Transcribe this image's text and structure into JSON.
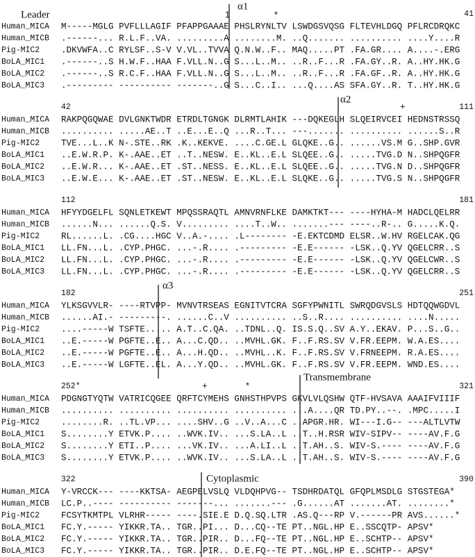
{
  "blocks": [
    {
      "end": "41",
      "annotations": [
        "Leader",
        "α1",
        "1",
        "*"
      ],
      "rows": [
        {
          "name": "Human_MICA",
          "seq": "M-----MGLG PVFLLLAGIF PFAPPGAAAE PHSLRYNLTV LSWDGSVQSG FLTEVHLDGQ PFLRCDRQKC"
        },
        {
          "name": "Human_MICB",
          "seq": ".------... R.L.F..VA. .........A ........M. ..Q....... .......... ....Y....R"
        },
        {
          "name": "Pig-MIC2",
          "seq": ".DKVWFA..C RYLSF..S-V V.VL..TVVA Q.N.W..F.. MAQ.....PT .FA.GR.... A....-.ERG"
        },
        {
          "name": "BoLA_MIC1",
          "seq": ".------..S H.W.F..HAA F.VLL.N..G S...L..M.. ..R..F...R .FA.GY..R. A..HY.HK.G"
        },
        {
          "name": "BoLA_MIC2",
          "seq": ".------..S R.C.F..HAA F.VLL.N..G S...L..M.. ..R..F...R .FA.GF..R. A..HY.HK.G"
        },
        {
          "name": "BoLA_MIC3",
          "seq": ".--------- ---------- -------..G S...C..I.. ...Q....AS SFA.GY..R. T..HY.HK.G"
        }
      ]
    },
    {
      "start": "42",
      "end": "111",
      "annotations": [
        "α2",
        "+"
      ],
      "rows": [
        {
          "name": "Human_MICA",
          "seq": "RAKPQGQWAE DVLGNKTWDR ETRDLTGNGK DLRMTLAHIK ---DQKEGLH SLQEIRVCEI HEDNSTRSSQ"
        },
        {
          "name": "Human_MICB",
          "seq": ".......... .....AE..T ..E...E..Q ...R..T... ---....... .......... ......S..R"
        },
        {
          "name": "Pig-MIC2",
          "seq": "TVE...L..K N-.STE..RK .K..KEKVE. ....C.GE.L GLQKE..G.. ......VS.M G..SHP.GVR"
        },
        {
          "name": "BoLA_MIC1",
          "seq": "..E.W.R.P. K-.AAE..ET ..T..NESW. E..KL..E.L SLQEE..G.. .....TVG.D N..SHPQGFR"
        },
        {
          "name": "BoLA_MIC2",
          "seq": "..E.W.R... K-.AAE..ET .ST..NESS. E..KL..E.L SLQEE..G.. .....TVG.N D..SHPQGFR"
        },
        {
          "name": "BoLA_MIC3",
          "seq": "..E.W.E... K-.AAE..ET .ST..NESW. E..KL..E.L SLQKE..G.. .....TVG.S N..SHPQGFR"
        }
      ]
    },
    {
      "start": "112",
      "end": "181",
      "annotations": [],
      "rows": [
        {
          "name": "Human_MICA",
          "seq": "HFYYDGELFL SQNLETKEWT MPQSSRAQTL AMNVRNFLKE DAMKTKT--- ----HYHA-M HADCLQELRR"
        },
        {
          "name": "Human_MICB",
          "seq": "......N... ......Q.S. V......... ....T..W.. .......--- ----..R-.. G.....K.Q."
        },
        {
          "name": "Pig-MIC2",
          "seq": "RL......L. .CG....HGC V..A.-.... .L-------- -E.EKTCDMD ELSR..W.HV RGELCAK.QG"
        },
        {
          "name": "BoLA_MIC1",
          "seq": "LL.FN...L. .CYP.PHGC. ...-.R.... .--------- -E.E------ -LSK..Q.YV QGELCRR..S"
        },
        {
          "name": "BoLA_MIC2",
          "seq": "LL.FN...L. .CYP.PHGC. ...-.R.... .--------- -E.E------ -LSK..Q.YV QGELCWR..S"
        },
        {
          "name": "BoLA_MIC3",
          "seq": "LL.FN...L. .CYP.PHGC. ...-.R.... .--------- -E.E------ -LSK..Q.YV QGELCRR..S"
        }
      ]
    },
    {
      "start": "182",
      "end": "251",
      "annotations": [
        "α3"
      ],
      "rows": [
        {
          "name": "Human_MICA",
          "seq": "YLKSGVVLR- ----RTVPP- MVNVTRSEAS EGNITVTCRA SGFYPWNITL SWRQDGVSLS HDTQQWGDVL"
        },
        {
          "name": "Human_MICB",
          "seq": "......AI.- ---------. ......C..V .......... ..S..R.... .......... ....N....."
        },
        {
          "name": "Pig-MIC2",
          "seq": "....-----W TSFTE..... A.T..C.QA. ..TDNL..Q. IS.S.Q..SV A.Y..EKAV. P...S..G.."
        },
        {
          "name": "BoLA_MIC1",
          "seq": "..E.-----W PGFTE..E.. A...C.QD.. ..MVHL.GK. F..F.RS.SV V.FR.EEPM. W.A.ES...."
        },
        {
          "name": "BoLA_MIC2",
          "seq": "..E.-----W PGFTE..E.. A...H.QD.. ..MVHL..K. F..F.RS.SV V.FRNEEPM. R.A.ES...."
        },
        {
          "name": "BoLA_MIC3",
          "seq": "..E.-----W LGFTE..EL. A...Y.QD.. ..MVHL.GK. F..F.RS.SV V.FR.EEPM. WND.ES...."
        }
      ]
    },
    {
      "start": "252*",
      "end": "321",
      "annotations": [
        "+",
        "*",
        "Transmembrane"
      ],
      "rows": [
        {
          "name": "Human_MICA",
          "seq": "PDGNGTYQTW VATRICQGEE QRFTCYMEHS GNHSTHPVPS GKVLVLQSHW QTF-HVSAVA AAAIFVIIIF"
        },
        {
          "name": "Human_MICB",
          "seq": ".......... .......... .......... .......... ...A....QR TD.PY..--. .MPC.....I"
        },
        {
          "name": "Pig-MIC2",
          "seq": "........R. ..TL.VP... ....SHV..G ..V..A...C ..APGR.HR. WI---I.G-- ---ALTLVTW"
        },
        {
          "name": "BoLA_MIC1",
          "seq": "S........Y ETVK.P.... ..WVK.IV.. ...S.LA..L ..T..H.RSR WIV-SIPV-- ----AV.F.G"
        },
        {
          "name": "BoLA_MIC2",
          "seq": "S........Y ETI..P.... ...VK.IV.. ...A.LI..L ..T.AH..S. WIV-S.---- ----AV.F.G"
        },
        {
          "name": "BoLA_MIC3",
          "seq": "S........Y ETVK.P.... ..WVK.IV.. ...S.LA..L ..T.AH..S. WIV-S.---- ----AV.F.G"
        }
      ]
    },
    {
      "start": "322",
      "end": "390",
      "annotations": [
        "Cytoplasmic"
      ],
      "rows": [
        {
          "name": "Human_MICA",
          "seq": "Y-VRCCK--- ----KKTSA- AEGPELVSLQ VLDQHPVG-- TSDHRDATQL GFQPLMSDLG STGSTEGA*"
        },
        {
          "name": "Human_MICB",
          "seq": "LC.P..---- ---------- -------... .......--- .G......AT .......AT. ........*"
        },
        {
          "name": "Pig-MIC2",
          "seq": "FCSYTKMTPL VLRHR----- ----.SIE.E D.Q.SQ.LTR .AS.Q---RP V.------PR AVS......*"
        },
        {
          "name": "BoLA_MIC1",
          "seq": "FC.Y.----- YIKKR.TA.. TGR..PI... D...CQ--TE PT..NGL.HP E..SSCQTP- APSV*"
        },
        {
          "name": "BoLA_MIC2",
          "seq": "FC.Y.----- YIKKR.TA.. TGR..PIR.. D...FQ--TE PT..NGL.HP E..SCHTP-- APSV*"
        },
        {
          "name": "BoLA_MIC3",
          "seq": "FC.Y.----- YIKKR.TA.. TGR..PIR.. D.E.FQ--TE PT..NGL.HP E..SCHTP-- APSV*"
        }
      ]
    }
  ]
}
